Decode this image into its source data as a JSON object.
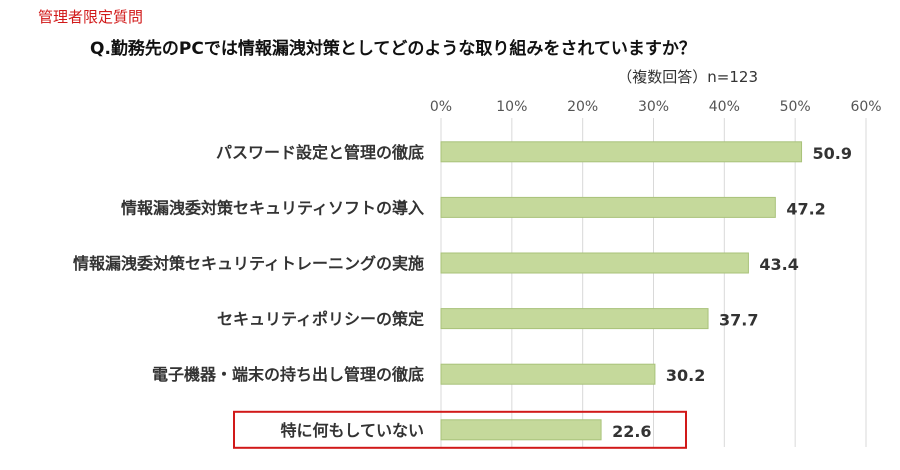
{
  "header": {
    "tag": "管理者限定質問",
    "question": "Q.勤務先のPCでは情報漏洩対策としてどのような取り組みをされていますか？",
    "note": "（複数回答）n=123"
  },
  "colors": {
    "bar": "#c5d99b",
    "bar_stroke": "#a9c27a",
    "grid": "#d9d9d9",
    "highlight": "#d11919",
    "tag": "#d11919"
  },
  "chart_data": {
    "type": "bar",
    "orientation": "horizontal",
    "unit": "%",
    "xlim": [
      0,
      60
    ],
    "ticks": [
      "0%",
      "10%",
      "20%",
      "30%",
      "40%",
      "50%",
      "60%"
    ],
    "tick_values": [
      0,
      10,
      20,
      30,
      40,
      50,
      60
    ],
    "grid": true,
    "categories": [
      "パスワード設定と管理の徹底",
      "情報漏洩委対策セキュリティソフトの導入",
      "情報漏洩委対策セキュリティトレーニングの実施",
      "セキュリティポリシーの策定",
      "電子機器・端末の持ち出し管理の徹底",
      "特に何もしていない"
    ],
    "values": [
      50.9,
      47.2,
      43.4,
      37.7,
      30.2,
      22.6
    ],
    "value_labels": [
      "50.9",
      "47.2",
      "43.4",
      "37.7",
      "30.2",
      "22.6"
    ],
    "highlighted_category": "特に何もしていない"
  }
}
